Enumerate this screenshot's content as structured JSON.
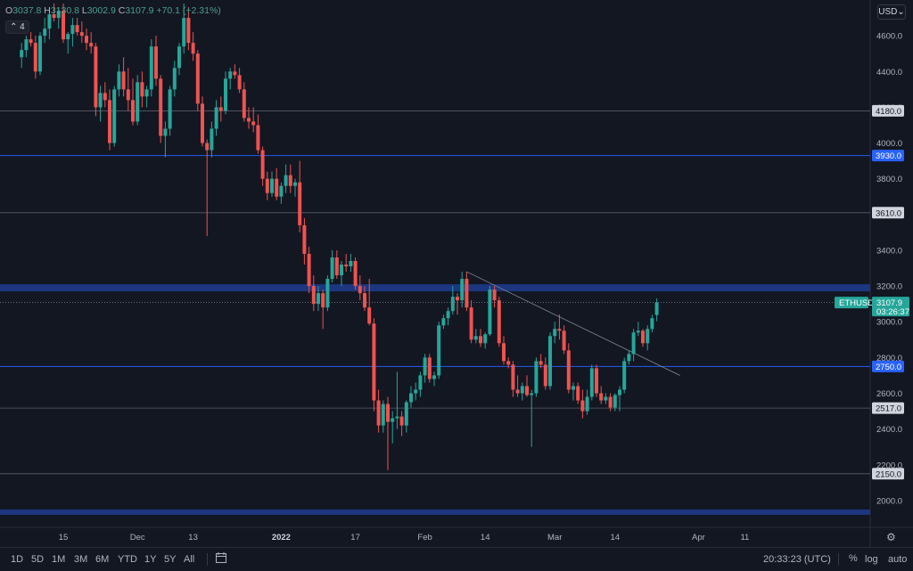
{
  "header": {
    "o_label": "O",
    "o_value": "3037.8",
    "h_label": "H",
    "h_value": "3130.8",
    "l_label": "L",
    "l_value": "3002.9",
    "c_label": "C",
    "c_value": "3107.9",
    "change": "+70.1 (+2.31%)",
    "collapse_label": "4",
    "currency": "USD"
  },
  "toolbar": {
    "timeframes": [
      "1D",
      "5D",
      "1M",
      "3M",
      "6M",
      "YTD",
      "1Y",
      "5Y",
      "All"
    ],
    "clock": "20:33:23 (UTC)",
    "percent": "%",
    "log": "log",
    "auto": "auto"
  },
  "colors": {
    "background": "#131722",
    "up": "#26a69a",
    "down": "#ef5350",
    "level_blue": "#2962ff",
    "zone": "#1e3a8a"
  },
  "chart_data": {
    "type": "candlestick",
    "symbol": "ETHUSD",
    "last_price": "3107.9",
    "countdown": "03:26:37",
    "ylim": [
      1850,
      4800
    ],
    "y_ticks": [
      2000,
      2200,
      2400,
      2600,
      2800,
      3000,
      3200,
      3400,
      3600,
      3800,
      4000,
      4200,
      4400,
      4600
    ],
    "x_ticks": [
      {
        "label": "15",
        "date": "2021-11-15"
      },
      {
        "label": "Dec",
        "date": "2021-12-01"
      },
      {
        "label": "13",
        "date": "2021-12-13"
      },
      {
        "label": "2022",
        "date": "2022-01-01",
        "bold": true
      },
      {
        "label": "17",
        "date": "2022-01-17"
      },
      {
        "label": "Feb",
        "date": "2022-02-01"
      },
      {
        "label": "14",
        "date": "2022-02-14"
      },
      {
        "label": "Mar",
        "date": "2022-03-01"
      },
      {
        "label": "14",
        "date": "2022-03-14"
      },
      {
        "label": "Apr",
        "date": "2022-04-01"
      },
      {
        "label": "11",
        "date": "2022-04-11"
      }
    ],
    "levels": [
      {
        "value": 4180,
        "label": "4180.0",
        "style": "gray"
      },
      {
        "value": 3930,
        "label": "3930.0",
        "style": "blue"
      },
      {
        "value": 3610,
        "label": "3610.0",
        "style": "gray"
      },
      {
        "value": 2750,
        "label": "2750.0",
        "style": "blue"
      },
      {
        "value": 2517,
        "label": "2517.0",
        "style": "gray"
      },
      {
        "value": 2150,
        "label": "2150.0",
        "style": "gray"
      }
    ],
    "zones": [
      {
        "from": 3170,
        "to": 3210
      },
      {
        "from": 1920,
        "to": 1950
      }
    ],
    "trendline": [
      {
        "date": "2022-02-10",
        "price": 3280
      },
      {
        "date": "2022-03-28",
        "price": 2700
      }
    ],
    "candles": [
      {
        "d": "2021-11-06",
        "o": 4480,
        "h": 4560,
        "l": 4420,
        "c": 4520
      },
      {
        "d": "2021-11-07",
        "o": 4520,
        "h": 4600,
        "l": 4480,
        "c": 4580
      },
      {
        "d": "2021-11-08",
        "o": 4580,
        "h": 4620,
        "l": 4540,
        "c": 4560
      },
      {
        "d": "2021-11-09",
        "o": 4560,
        "h": 4600,
        "l": 4360,
        "c": 4400
      },
      {
        "d": "2021-11-10",
        "o": 4400,
        "h": 4620,
        "l": 4380,
        "c": 4600
      },
      {
        "d": "2021-11-11",
        "o": 4600,
        "h": 4700,
        "l": 4560,
        "c": 4640
      },
      {
        "d": "2021-11-12",
        "o": 4640,
        "h": 4760,
        "l": 4580,
        "c": 4720
      },
      {
        "d": "2021-11-13",
        "o": 4720,
        "h": 4780,
        "l": 4680,
        "c": 4700
      },
      {
        "d": "2021-11-14",
        "o": 4700,
        "h": 4760,
        "l": 4640,
        "c": 4740
      },
      {
        "d": "2021-11-15",
        "o": 4740,
        "h": 4780,
        "l": 4560,
        "c": 4580
      },
      {
        "d": "2021-11-16",
        "o": 4580,
        "h": 4620,
        "l": 4500,
        "c": 4610
      },
      {
        "d": "2021-11-17",
        "o": 4610,
        "h": 4700,
        "l": 4540,
        "c": 4660
      },
      {
        "d": "2021-11-18",
        "o": 4660,
        "h": 4700,
        "l": 4600,
        "c": 4620
      },
      {
        "d": "2021-11-19",
        "o": 4620,
        "h": 4680,
        "l": 4560,
        "c": 4600
      },
      {
        "d": "2021-11-20",
        "o": 4600,
        "h": 4640,
        "l": 4520,
        "c": 4560
      },
      {
        "d": "2021-11-21",
        "o": 4560,
        "h": 4620,
        "l": 4500,
        "c": 4540
      },
      {
        "d": "2021-11-22",
        "o": 4540,
        "h": 4560,
        "l": 4150,
        "c": 4200
      },
      {
        "d": "2021-11-23",
        "o": 4200,
        "h": 4320,
        "l": 4120,
        "c": 4280
      },
      {
        "d": "2021-11-24",
        "o": 4280,
        "h": 4340,
        "l": 4200,
        "c": 4240
      },
      {
        "d": "2021-11-25",
        "o": 4240,
        "h": 4300,
        "l": 3960,
        "c": 4000
      },
      {
        "d": "2021-11-26",
        "o": 4000,
        "h": 4320,
        "l": 3980,
        "c": 4300
      },
      {
        "d": "2021-11-27",
        "o": 4300,
        "h": 4440,
        "l": 4260,
        "c": 4400
      },
      {
        "d": "2021-11-28",
        "o": 4400,
        "h": 4480,
        "l": 4260,
        "c": 4300
      },
      {
        "d": "2021-11-29",
        "o": 4300,
        "h": 4420,
        "l": 4180,
        "c": 4240
      },
      {
        "d": "2021-11-30",
        "o": 4240,
        "h": 4360,
        "l": 4100,
        "c": 4120
      },
      {
        "d": "2021-12-01",
        "o": 4120,
        "h": 4380,
        "l": 4100,
        "c": 4340
      },
      {
        "d": "2021-12-02",
        "o": 4340,
        "h": 4400,
        "l": 4200,
        "c": 4260
      },
      {
        "d": "2021-12-03",
        "o": 4260,
        "h": 4320,
        "l": 4200,
        "c": 4300
      },
      {
        "d": "2021-12-04",
        "o": 4300,
        "h": 4580,
        "l": 4260,
        "c": 4540
      },
      {
        "d": "2021-12-05",
        "o": 4540,
        "h": 4600,
        "l": 4320,
        "c": 4360
      },
      {
        "d": "2021-12-06",
        "o": 4360,
        "h": 4380,
        "l": 4000,
        "c": 4040
      },
      {
        "d": "2021-12-07",
        "o": 4040,
        "h": 4120,
        "l": 3920,
        "c": 4080
      },
      {
        "d": "2021-12-08",
        "o": 4080,
        "h": 4320,
        "l": 4040,
        "c": 4300
      },
      {
        "d": "2021-12-09",
        "o": 4300,
        "h": 4460,
        "l": 4260,
        "c": 4420
      },
      {
        "d": "2021-12-10",
        "o": 4420,
        "h": 4560,
        "l": 4380,
        "c": 4540
      },
      {
        "d": "2021-12-11",
        "o": 4540,
        "h": 4780,
        "l": 4500,
        "c": 4700
      },
      {
        "d": "2021-12-12",
        "o": 4700,
        "h": 4760,
        "l": 4520,
        "c": 4560
      },
      {
        "d": "2021-12-13",
        "o": 4560,
        "h": 4620,
        "l": 4460,
        "c": 4500
      },
      {
        "d": "2021-12-14",
        "o": 4500,
        "h": 4520,
        "l": 4180,
        "c": 4220
      },
      {
        "d": "2021-12-15",
        "o": 4220,
        "h": 4260,
        "l": 3980,
        "c": 4000
      },
      {
        "d": "2021-12-16",
        "o": 4000,
        "h": 4020,
        "l": 3480,
        "c": 3960
      },
      {
        "d": "2021-12-17",
        "o": 3960,
        "h": 4120,
        "l": 3920,
        "c": 4080
      },
      {
        "d": "2021-12-18",
        "o": 4080,
        "h": 4240,
        "l": 4040,
        "c": 4200
      },
      {
        "d": "2021-12-19",
        "o": 4200,
        "h": 4260,
        "l": 4120,
        "c": 4180
      },
      {
        "d": "2021-12-20",
        "o": 4180,
        "h": 4400,
        "l": 4160,
        "c": 4360
      },
      {
        "d": "2021-12-21",
        "o": 4360,
        "h": 4420,
        "l": 4300,
        "c": 4400
      },
      {
        "d": "2021-12-22",
        "o": 4400,
        "h": 4440,
        "l": 4360,
        "c": 4380
      },
      {
        "d": "2021-12-23",
        "o": 4380,
        "h": 4420,
        "l": 4280,
        "c": 4300
      },
      {
        "d": "2021-12-24",
        "o": 4300,
        "h": 4340,
        "l": 4120,
        "c": 4140
      },
      {
        "d": "2021-12-25",
        "o": 4140,
        "h": 4200,
        "l": 4080,
        "c": 4120
      },
      {
        "d": "2021-12-26",
        "o": 4120,
        "h": 4200,
        "l": 4060,
        "c": 4100
      },
      {
        "d": "2021-12-27",
        "o": 4100,
        "h": 4160,
        "l": 3940,
        "c": 3960
      },
      {
        "d": "2021-12-28",
        "o": 3960,
        "h": 3980,
        "l": 3760,
        "c": 3800
      },
      {
        "d": "2021-12-29",
        "o": 3800,
        "h": 3840,
        "l": 3680,
        "c": 3720
      },
      {
        "d": "2021-12-30",
        "o": 3720,
        "h": 3840,
        "l": 3700,
        "c": 3800
      },
      {
        "d": "2021-12-31",
        "o": 3800,
        "h": 3860,
        "l": 3680,
        "c": 3700
      },
      {
        "d": "2022-01-01",
        "o": 3700,
        "h": 3780,
        "l": 3660,
        "c": 3760
      },
      {
        "d": "2022-01-02",
        "o": 3760,
        "h": 3880,
        "l": 3720,
        "c": 3820
      },
      {
        "d": "2022-01-03",
        "o": 3820,
        "h": 3880,
        "l": 3720,
        "c": 3760
      },
      {
        "d": "2022-01-04",
        "o": 3760,
        "h": 3800,
        "l": 3700,
        "c": 3780
      },
      {
        "d": "2022-01-05",
        "o": 3780,
        "h": 3900,
        "l": 3500,
        "c": 3540
      },
      {
        "d": "2022-01-06",
        "o": 3540,
        "h": 3580,
        "l": 3320,
        "c": 3380
      },
      {
        "d": "2022-01-07",
        "o": 3380,
        "h": 3420,
        "l": 3160,
        "c": 3200
      },
      {
        "d": "2022-01-08",
        "o": 3200,
        "h": 3260,
        "l": 3060,
        "c": 3100
      },
      {
        "d": "2022-01-09",
        "o": 3100,
        "h": 3200,
        "l": 3060,
        "c": 3160
      },
      {
        "d": "2022-01-10",
        "o": 3160,
        "h": 3180,
        "l": 2960,
        "c": 3080
      },
      {
        "d": "2022-01-11",
        "o": 3080,
        "h": 3260,
        "l": 3060,
        "c": 3240
      },
      {
        "d": "2022-01-12",
        "o": 3240,
        "h": 3400,
        "l": 3220,
        "c": 3360
      },
      {
        "d": "2022-01-13",
        "o": 3360,
        "h": 3400,
        "l": 3240,
        "c": 3260
      },
      {
        "d": "2022-01-14",
        "o": 3260,
        "h": 3340,
        "l": 3200,
        "c": 3320
      },
      {
        "d": "2022-01-15",
        "o": 3320,
        "h": 3380,
        "l": 3280,
        "c": 3310
      },
      {
        "d": "2022-01-16",
        "o": 3310,
        "h": 3380,
        "l": 3280,
        "c": 3340
      },
      {
        "d": "2022-01-17",
        "o": 3340,
        "h": 3360,
        "l": 3180,
        "c": 3200
      },
      {
        "d": "2022-01-18",
        "o": 3200,
        "h": 3260,
        "l": 3120,
        "c": 3160
      },
      {
        "d": "2022-01-19",
        "o": 3160,
        "h": 3200,
        "l": 3060,
        "c": 3080
      },
      {
        "d": "2022-01-20",
        "o": 3080,
        "h": 3240,
        "l": 2980,
        "c": 2990
      },
      {
        "d": "2022-01-21",
        "o": 2990,
        "h": 3020,
        "l": 2500,
        "c": 2560
      },
      {
        "d": "2022-01-22",
        "o": 2560,
        "h": 2620,
        "l": 2380,
        "c": 2420
      },
      {
        "d": "2022-01-23",
        "o": 2420,
        "h": 2560,
        "l": 2380,
        "c": 2540
      },
      {
        "d": "2022-01-24",
        "o": 2540,
        "h": 2580,
        "l": 2170,
        "c": 2440
      },
      {
        "d": "2022-01-25",
        "o": 2440,
        "h": 2500,
        "l": 2320,
        "c": 2460
      },
      {
        "d": "2022-01-26",
        "o": 2460,
        "h": 2720,
        "l": 2400,
        "c": 2470
      },
      {
        "d": "2022-01-27",
        "o": 2470,
        "h": 2500,
        "l": 2360,
        "c": 2420
      },
      {
        "d": "2022-01-28",
        "o": 2420,
        "h": 2560,
        "l": 2380,
        "c": 2550
      },
      {
        "d": "2022-01-29",
        "o": 2550,
        "h": 2640,
        "l": 2520,
        "c": 2600
      },
      {
        "d": "2022-01-30",
        "o": 2600,
        "h": 2660,
        "l": 2560,
        "c": 2620
      },
      {
        "d": "2022-01-31",
        "o": 2620,
        "h": 2720,
        "l": 2580,
        "c": 2700
      },
      {
        "d": "2022-02-01",
        "o": 2700,
        "h": 2820,
        "l": 2660,
        "c": 2800
      },
      {
        "d": "2022-02-02",
        "o": 2800,
        "h": 2820,
        "l": 2660,
        "c": 2680
      },
      {
        "d": "2022-02-03",
        "o": 2680,
        "h": 2720,
        "l": 2640,
        "c": 2700
      },
      {
        "d": "2022-02-04",
        "o": 2700,
        "h": 3000,
        "l": 2680,
        "c": 2980
      },
      {
        "d": "2022-02-05",
        "o": 2980,
        "h": 3040,
        "l": 2960,
        "c": 3020
      },
      {
        "d": "2022-02-06",
        "o": 3020,
        "h": 3080,
        "l": 2980,
        "c": 3060
      },
      {
        "d": "2022-02-07",
        "o": 3060,
        "h": 3200,
        "l": 3040,
        "c": 3140
      },
      {
        "d": "2022-02-08",
        "o": 3140,
        "h": 3160,
        "l": 3040,
        "c": 3120
      },
      {
        "d": "2022-02-09",
        "o": 3120,
        "h": 3280,
        "l": 3080,
        "c": 3240
      },
      {
        "d": "2022-02-10",
        "o": 3240,
        "h": 3280,
        "l": 3060,
        "c": 3080
      },
      {
        "d": "2022-02-11",
        "o": 3080,
        "h": 3120,
        "l": 2880,
        "c": 2900
      },
      {
        "d": "2022-02-12",
        "o": 2900,
        "h": 2960,
        "l": 2880,
        "c": 2920
      },
      {
        "d": "2022-02-13",
        "o": 2920,
        "h": 2960,
        "l": 2860,
        "c": 2880
      },
      {
        "d": "2022-02-14",
        "o": 2880,
        "h": 2940,
        "l": 2850,
        "c": 2930
      },
      {
        "d": "2022-02-15",
        "o": 2930,
        "h": 3200,
        "l": 2920,
        "c": 3180
      },
      {
        "d": "2022-02-16",
        "o": 3180,
        "h": 3200,
        "l": 3080,
        "c": 3120
      },
      {
        "d": "2022-02-17",
        "o": 3120,
        "h": 3140,
        "l": 2860,
        "c": 2880
      },
      {
        "d": "2022-02-18",
        "o": 2880,
        "h": 2920,
        "l": 2760,
        "c": 2780
      },
      {
        "d": "2022-02-19",
        "o": 2780,
        "h": 2800,
        "l": 2740,
        "c": 2760
      },
      {
        "d": "2022-02-20",
        "o": 2760,
        "h": 2780,
        "l": 2580,
        "c": 2620
      },
      {
        "d": "2022-02-21",
        "o": 2620,
        "h": 2700,
        "l": 2580,
        "c": 2600
      },
      {
        "d": "2022-02-22",
        "o": 2600,
        "h": 2660,
        "l": 2560,
        "c": 2640
      },
      {
        "d": "2022-02-23",
        "o": 2640,
        "h": 2700,
        "l": 2580,
        "c": 2590
      },
      {
        "d": "2022-02-24",
        "o": 2590,
        "h": 2620,
        "l": 2300,
        "c": 2600
      },
      {
        "d": "2022-02-25",
        "o": 2600,
        "h": 2800,
        "l": 2580,
        "c": 2780
      },
      {
        "d": "2022-02-26",
        "o": 2780,
        "h": 2820,
        "l": 2740,
        "c": 2760
      },
      {
        "d": "2022-02-27",
        "o": 2760,
        "h": 2800,
        "l": 2620,
        "c": 2640
      },
      {
        "d": "2022-02-28",
        "o": 2640,
        "h": 2940,
        "l": 2620,
        "c": 2920
      },
      {
        "d": "2022-03-01",
        "o": 2920,
        "h": 3000,
        "l": 2880,
        "c": 2960
      },
      {
        "d": "2022-03-02",
        "o": 2960,
        "h": 3040,
        "l": 2900,
        "c": 2950
      },
      {
        "d": "2022-03-03",
        "o": 2950,
        "h": 2980,
        "l": 2820,
        "c": 2840
      },
      {
        "d": "2022-03-04",
        "o": 2840,
        "h": 2880,
        "l": 2600,
        "c": 2620
      },
      {
        "d": "2022-03-05",
        "o": 2620,
        "h": 2660,
        "l": 2560,
        "c": 2640
      },
      {
        "d": "2022-03-06",
        "o": 2640,
        "h": 2660,
        "l": 2540,
        "c": 2560
      },
      {
        "d": "2022-03-07",
        "o": 2560,
        "h": 2620,
        "l": 2460,
        "c": 2500
      },
      {
        "d": "2022-03-08",
        "o": 2500,
        "h": 2620,
        "l": 2480,
        "c": 2580
      },
      {
        "d": "2022-03-09",
        "o": 2580,
        "h": 2760,
        "l": 2560,
        "c": 2740
      },
      {
        "d": "2022-03-10",
        "o": 2740,
        "h": 2760,
        "l": 2580,
        "c": 2600
      },
      {
        "d": "2022-03-11",
        "o": 2600,
        "h": 2640,
        "l": 2540,
        "c": 2560
      },
      {
        "d": "2022-03-12",
        "o": 2560,
        "h": 2600,
        "l": 2540,
        "c": 2580
      },
      {
        "d": "2022-03-13",
        "o": 2580,
        "h": 2600,
        "l": 2500,
        "c": 2520
      },
      {
        "d": "2022-03-14",
        "o": 2520,
        "h": 2600,
        "l": 2500,
        "c": 2590
      },
      {
        "d": "2022-03-15",
        "o": 2590,
        "h": 2640,
        "l": 2500,
        "c": 2620
      },
      {
        "d": "2022-03-16",
        "o": 2620,
        "h": 2800,
        "l": 2600,
        "c": 2780
      },
      {
        "d": "2022-03-17",
        "o": 2780,
        "h": 2840,
        "l": 2760,
        "c": 2820
      },
      {
        "d": "2022-03-18",
        "o": 2820,
        "h": 2960,
        "l": 2780,
        "c": 2940
      },
      {
        "d": "2022-03-19",
        "o": 2940,
        "h": 3000,
        "l": 2920,
        "c": 2950
      },
      {
        "d": "2022-03-20",
        "o": 2950,
        "h": 2960,
        "l": 2860,
        "c": 2880
      },
      {
        "d": "2022-03-21",
        "o": 2880,
        "h": 2980,
        "l": 2840,
        "c": 2960
      },
      {
        "d": "2022-03-22",
        "o": 2960,
        "h": 3040,
        "l": 2940,
        "c": 3020
      },
      {
        "d": "2022-03-23",
        "o": 3037.8,
        "h": 3130.8,
        "l": 3002.9,
        "c": 3107.9
      }
    ]
  }
}
